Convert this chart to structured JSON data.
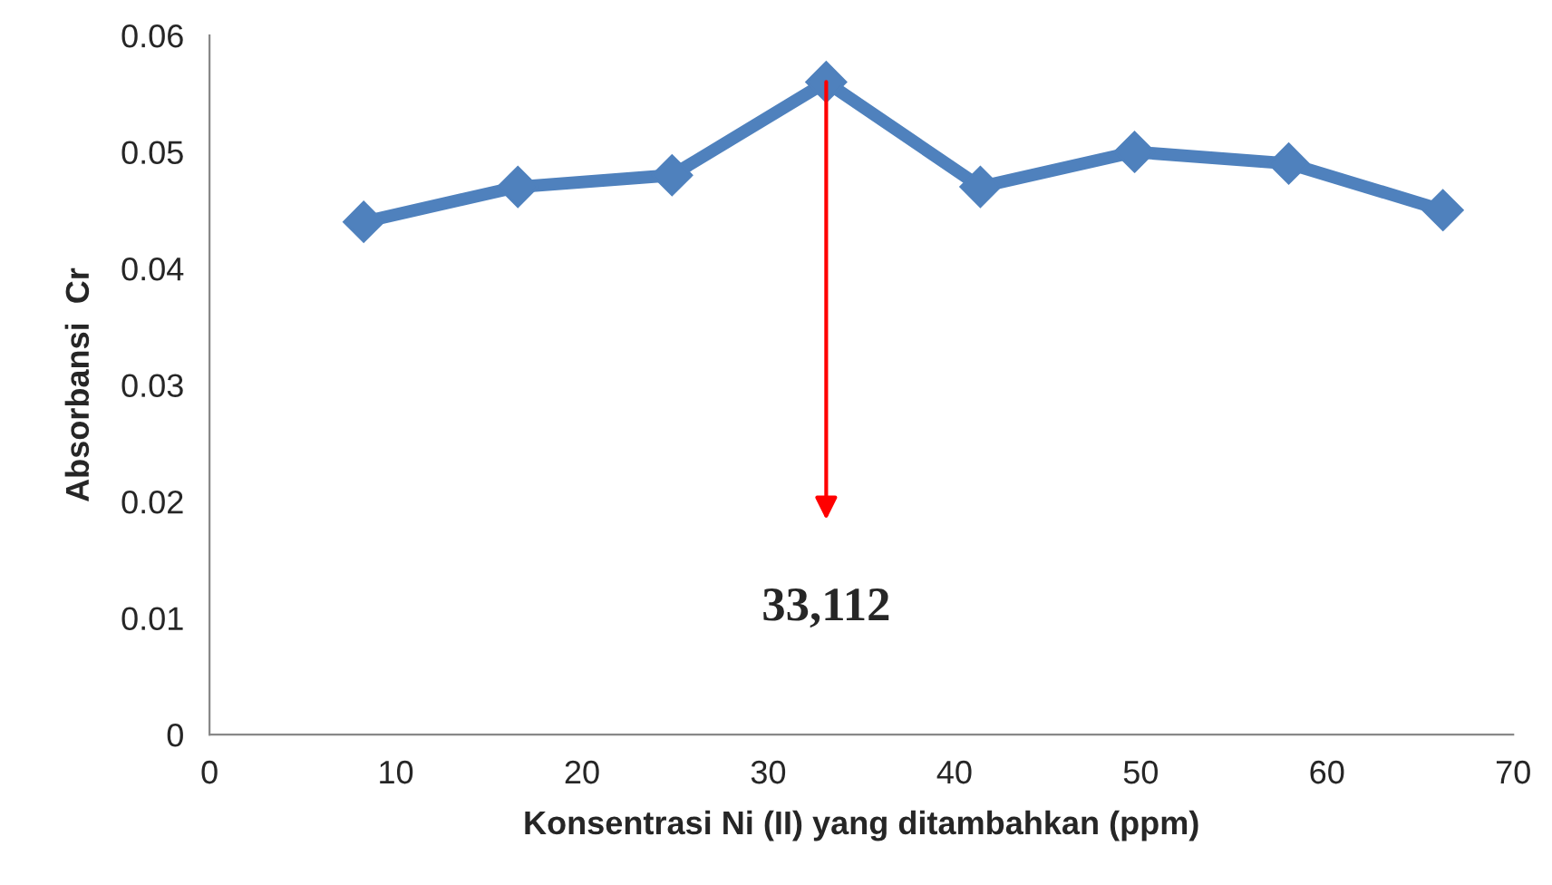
{
  "chart_data": {
    "type": "line",
    "xlabel": "Konsentrasi Ni (II) yang ditambahkan (ppm)",
    "ylabel": "Absorbansi  Cr",
    "x": [
      8.278,
      16.556,
      24.834,
      33.112,
      41.39,
      49.668,
      57.946,
      66.224
    ],
    "series": [
      {
        "color": "#4f81bd",
        "values": [
          0.044,
          0.047,
          0.048,
          0.056,
          0.047,
          0.05,
          0.049,
          0.045
        ]
      }
    ],
    "xlim": [
      0,
      70
    ],
    "xticks": [
      0,
      10,
      20,
      30,
      40,
      50,
      60,
      70
    ],
    "ylim": [
      0,
      0.06
    ],
    "yticks": [
      {
        "value": 0,
        "label": "0"
      },
      0.01,
      0.02,
      0.03,
      0.04,
      0.05,
      0.06
    ],
    "marker": "diamond",
    "grid": false,
    "legend": false,
    "ref_lines": [
      {
        "axis": "x",
        "value": 33.112,
        "label": "33,112",
        "color": "#ff0000"
      }
    ]
  }
}
